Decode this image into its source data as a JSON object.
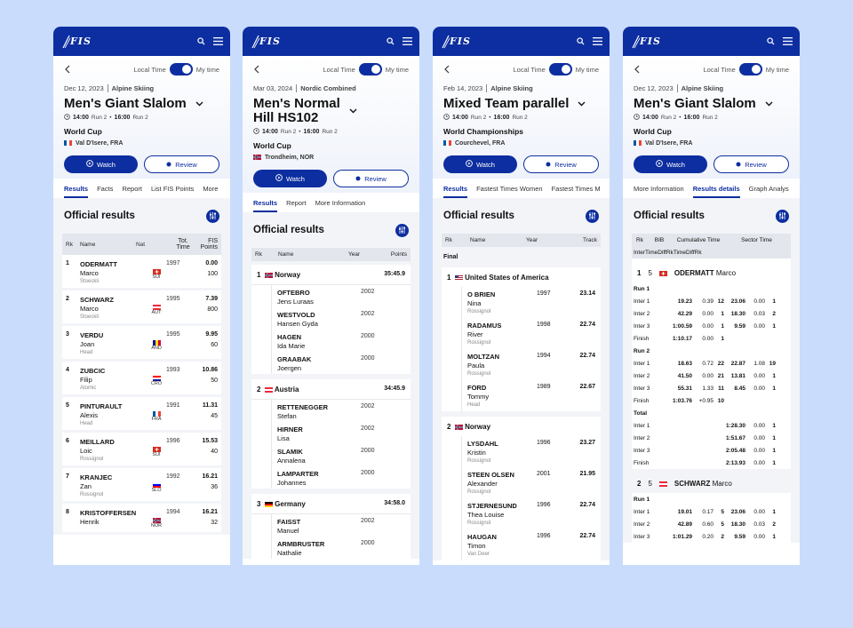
{
  "header": {
    "logo": "FIS",
    "local_time": "Local Time",
    "my_time": "My time",
    "watch": "Watch",
    "review": "Review",
    "official": "Official results"
  },
  "colors": {
    "brand": "#0d2ea0",
    "background": "#c9dcfb"
  },
  "screens": [
    {
      "date": "Dec 12, 2023",
      "discipline": "Alpine Skiing",
      "title": "Men's Giant Slalom",
      "run1_time": "14:00",
      "run1": "Run 2",
      "run2_time": "16:00",
      "run2": "Run 2",
      "competition": "World Cup",
      "location": "Val D'Isere, FRA",
      "tabs": [
        "Results",
        "Facts",
        "Report",
        "List FIS Points",
        "More"
      ],
      "cols": {
        "rk": "Rk",
        "name": "Name",
        "nat": "Nat",
        "time": "Tot. Time",
        "pts": "FIS Points"
      },
      "rows": [
        {
          "rk": "1",
          "last": "ODERMATT",
          "first": "Marco",
          "sponsor": "Stoeckli",
          "nat": "SUI",
          "year": "1997",
          "time": "0.00",
          "pts": "100"
        },
        {
          "rk": "2",
          "last": "SCHWARZ",
          "first": "Marco",
          "sponsor": "Stoeckli",
          "nat": "AUT",
          "year": "1995",
          "time": "7.39",
          "pts": "800"
        },
        {
          "rk": "3",
          "last": "VERDU",
          "first": "Joan",
          "sponsor": "Head",
          "nat": "AND",
          "year": "1995",
          "time": "9.95",
          "pts": "60"
        },
        {
          "rk": "4",
          "last": "ZUBCIC",
          "first": "Filip",
          "sponsor": "Atomic",
          "nat": "CRO",
          "year": "1993",
          "time": "10.86",
          "pts": "50"
        },
        {
          "rk": "5",
          "last": "PINTURAULT",
          "first": "Alexis",
          "sponsor": "Head",
          "nat": "FRA",
          "year": "1991",
          "time": "11.31",
          "pts": "45"
        },
        {
          "rk": "6",
          "last": "MEILLARD",
          "first": "Loic",
          "sponsor": "Rossignol",
          "nat": "SUI",
          "year": "1996",
          "time": "15.53",
          "pts": "40"
        },
        {
          "rk": "7",
          "last": "KRANJEC",
          "first": "Zan",
          "sponsor": "Rossignol",
          "nat": "SLO",
          "year": "1992",
          "time": "16.21",
          "pts": "36"
        },
        {
          "rk": "8",
          "last": "KRISTOFFERSEN",
          "first": "Henrik",
          "sponsor": "",
          "nat": "NOR",
          "year": "1994",
          "time": "16.21",
          "pts": "32"
        }
      ]
    },
    {
      "date": "Mar 03, 2024",
      "discipline": "Nordic Combined",
      "title_l1": "Men's Normal",
      "title_l2": "Hill HS102",
      "run1_time": "14:00",
      "run1": "Run 2",
      "run2_time": "16:00",
      "run2": "Run 2",
      "competition": "World Cup",
      "location": "Trondheim, NOR",
      "tabs": [
        "Results",
        "Report",
        "More Information"
      ],
      "cols": {
        "rk": "Rk",
        "name": "Name",
        "year": "Year",
        "pts": "Points"
      },
      "teams": [
        {
          "rk": "1",
          "name": "Norway",
          "time": "35:45.9",
          "members": [
            {
              "last": "OFTEBRO",
              "first": "Jens Luraas",
              "year": "2002"
            },
            {
              "last": "WESTVOLD",
              "first": "Hansen Gyda",
              "year": "2002"
            },
            {
              "last": "HAGEN",
              "first": "Ida Marie",
              "year": "2000"
            },
            {
              "last": "GRAABAK",
              "first": "Joergen",
              "year": "2000"
            }
          ]
        },
        {
          "rk": "2",
          "name": "Austria",
          "time": "34:45.9",
          "members": [
            {
              "last": "RETTENEGGER",
              "first": "Stefan",
              "year": "2002"
            },
            {
              "last": "HIRNER",
              "first": "Lisa",
              "year": "2002"
            },
            {
              "last": "SLAMIK",
              "first": "Annalena",
              "year": "2000"
            },
            {
              "last": "LAMPARTER",
              "first": "Johannes",
              "year": "2000"
            }
          ]
        },
        {
          "rk": "3",
          "name": "Germany",
          "time": "34:58.0",
          "members": [
            {
              "last": "FAISST",
              "first": "Manuel",
              "year": "2002"
            },
            {
              "last": "ARMBRUSTER",
              "first": "Nathalie",
              "year": "2000"
            }
          ]
        }
      ]
    },
    {
      "date": "Feb 14, 2023",
      "discipline": "Alpine Skiing",
      "title": "Mixed Team parallel",
      "run1_time": "14:00",
      "run1": "Run 2",
      "run2_time": "16:00",
      "run2": "Run 2",
      "competition": "World Championships",
      "location": "Courchevel, FRA",
      "tabs": [
        "Results",
        "Fastest Times Women",
        "Fastest Times M"
      ],
      "cols": {
        "rk": "Rk",
        "name": "Name",
        "year": "Year",
        "pts": "Track"
      },
      "section": "Final",
      "teams": [
        {
          "rk": "1",
          "name": "United States of America",
          "members": [
            {
              "last": "O BRIEN",
              "first": "Nina",
              "sponsor": "Rossignol",
              "year": "1997",
              "time": "23.14"
            },
            {
              "last": "RADAMUS",
              "first": "River",
              "sponsor": "Rossignol",
              "year": "1998",
              "time": "22.74"
            },
            {
              "last": "MOLTZAN",
              "first": "Paula",
              "sponsor": "Rossignol",
              "year": "1994",
              "time": "22.74"
            },
            {
              "last": "FORD",
              "first": "Tommy",
              "sponsor": "Head",
              "year": "1989",
              "time": "22.67"
            }
          ]
        },
        {
          "rk": "2",
          "name": "Norway",
          "members": [
            {
              "last": "LYSDAHL",
              "first": "Kristin",
              "sponsor": "Rossignol",
              "year": "1996",
              "time": "23.27"
            },
            {
              "last": "STEEN OLSEN",
              "first": "Alexander",
              "sponsor": "Rossignol",
              "year": "2001",
              "time": "21.95"
            },
            {
              "last": "STJERNESUND",
              "first": "Thea Louise",
              "sponsor": "Rossignol",
              "year": "1996",
              "time": "22.74"
            },
            {
              "last": "HAUGAN",
              "first": "Timon",
              "sponsor": "Van Deer",
              "year": "1996",
              "time": "22.74"
            }
          ]
        }
      ]
    },
    {
      "date": "Dec 12, 2023",
      "discipline": "Alpine Skiing",
      "title": "Men's Giant Slalom",
      "run1_time": "14:00",
      "run1": "Run 2",
      "run2_time": "16:00",
      "run2": "Run 2",
      "competition": "World Cup",
      "location": "Val D'Isere, FRA",
      "tabs": [
        "More Information",
        "Results details",
        "Graph Analys"
      ],
      "cols": {
        "rk": "Rk",
        "bib": "BIB",
        "cum": "Cumulative Time",
        "sector": "Sector Time",
        "inter": "Inter",
        "time": "Time",
        "diff": "Diff",
        "rk2": "Rk"
      },
      "athletes": [
        {
          "rk": "1",
          "bib": "5",
          "last": "ODERMATT",
          "first": "Marco",
          "nat": "SUI",
          "blocks": [
            {
              "label": "Run 1",
              "rows": [
                {
                  "n": "Inter 1",
                  "t": "19.23",
                  "d": "0.39",
                  "r": "12",
                  "st": "23.06",
                  "sd": "0.00",
                  "sr": "1"
                },
                {
                  "n": "Inter 2",
                  "t": "42.29",
                  "d": "0.00",
                  "r": "1",
                  "st": "18.30",
                  "sd": "0.03",
                  "sr": "2"
                },
                {
                  "n": "Inter 3",
                  "t": "1:00.59",
                  "d": "0.00",
                  "r": "1",
                  "st": "9.59",
                  "sd": "0.00",
                  "sr": "1"
                },
                {
                  "n": "Finish",
                  "t": "1:10.17",
                  "d": "0.00",
                  "r": "1",
                  "st": "",
                  "sd": "",
                  "sr": ""
                }
              ]
            },
            {
              "label": "Run 2",
              "rows": [
                {
                  "n": "Inter 1",
                  "t": "18.63",
                  "d": "0.72",
                  "r": "22",
                  "st": "22.87",
                  "sd": "1.08",
                  "sr": "19"
                },
                {
                  "n": "Inter 2",
                  "t": "41.50",
                  "d": "0.00",
                  "r": "21",
                  "st": "13.81",
                  "sd": "0.00",
                  "sr": "1"
                },
                {
                  "n": "Inter 3",
                  "t": "55.31",
                  "d": "1.33",
                  "r": "11",
                  "st": "8.45",
                  "sd": "0.00",
                  "sr": "1"
                },
                {
                  "n": "Finish",
                  "t": "1:03.76",
                  "d": "+0.95",
                  "r": "10",
                  "st": "",
                  "sd": "",
                  "sr": ""
                }
              ]
            },
            {
              "label": "Total",
              "rows": [
                {
                  "n": "Inter 1",
                  "t": "",
                  "d": "",
                  "r": "",
                  "st": "1:28.30",
                  "sd": "0.00",
                  "sr": "1"
                },
                {
                  "n": "Inter 2",
                  "t": "",
                  "d": "",
                  "r": "",
                  "st": "1:51.67",
                  "sd": "0.00",
                  "sr": "1"
                },
                {
                  "n": "Inter 3",
                  "t": "",
                  "d": "",
                  "r": "",
                  "st": "2:05.48",
                  "sd": "0.00",
                  "sr": "1"
                },
                {
                  "n": "Finish",
                  "t": "",
                  "d": "",
                  "r": "",
                  "st": "2:13.93",
                  "sd": "0.00",
                  "sr": "1"
                }
              ]
            }
          ]
        },
        {
          "rk": "2",
          "bib": "5",
          "last": "SCHWARZ",
          "first": "Marco",
          "nat": "AUT",
          "blocks": [
            {
              "label": "Run 1",
              "rows": [
                {
                  "n": "Inter 1",
                  "t": "19.01",
                  "d": "0.17",
                  "r": "5",
                  "st": "23.06",
                  "sd": "0.00",
                  "sr": "1"
                },
                {
                  "n": "Inter 2",
                  "t": "42.89",
                  "d": "0.60",
                  "r": "5",
                  "st": "18.30",
                  "sd": "0.03",
                  "sr": "2"
                },
                {
                  "n": "Inter 3",
                  "t": "1:01.29",
                  "d": "0.20",
                  "r": "2",
                  "st": "9.59",
                  "sd": "0.00",
                  "sr": "1"
                }
              ]
            }
          ]
        }
      ]
    }
  ]
}
